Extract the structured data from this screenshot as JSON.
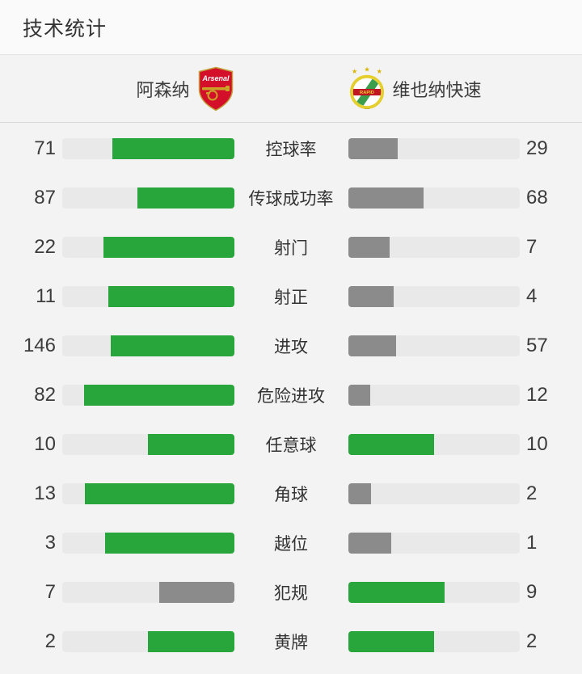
{
  "title": "技术统计",
  "header": {
    "home_team": "阿森纳",
    "away_team": "维也纳快速",
    "home_logo_text": "Arsenal",
    "away_logo_text": "RAPID"
  },
  "colors": {
    "green": "#29a63b",
    "gray": "#8b8b8b",
    "track": "#e9e9e9"
  },
  "stats": [
    {
      "label": "控球率",
      "home": 71,
      "away": 29
    },
    {
      "label": "传球成功率",
      "home": 87,
      "away": 68
    },
    {
      "label": "射门",
      "home": 22,
      "away": 7
    },
    {
      "label": "射正",
      "home": 11,
      "away": 4
    },
    {
      "label": "进攻",
      "home": 146,
      "away": 57
    },
    {
      "label": "危险进攻",
      "home": 82,
      "away": 12
    },
    {
      "label": "任意球",
      "home": 10,
      "away": 10
    },
    {
      "label": "角球",
      "home": 13,
      "away": 2
    },
    {
      "label": "越位",
      "home": 3,
      "away": 1
    },
    {
      "label": "犯规",
      "home": 7,
      "away": 9
    },
    {
      "label": "黄牌",
      "home": 2,
      "away": 2
    }
  ],
  "chart_data": {
    "type": "bar",
    "title": "技术统计",
    "categories": [
      "控球率",
      "传球成功率",
      "射门",
      "射正",
      "进攻",
      "危险进攻",
      "任意球",
      "角球",
      "越位",
      "犯规",
      "黄牌"
    ],
    "series": [
      {
        "name": "阿森纳",
        "values": [
          71,
          87,
          22,
          11,
          146,
          82,
          10,
          13,
          3,
          7,
          2
        ]
      },
      {
        "name": "维也纳快速",
        "values": [
          29,
          68,
          7,
          4,
          57,
          12,
          10,
          2,
          1,
          9,
          2
        ]
      }
    ],
    "layout": "mirrored horizontal bars, fill proportion = value/(home+away), green = side with higher or equal value, gray = lower side"
  }
}
